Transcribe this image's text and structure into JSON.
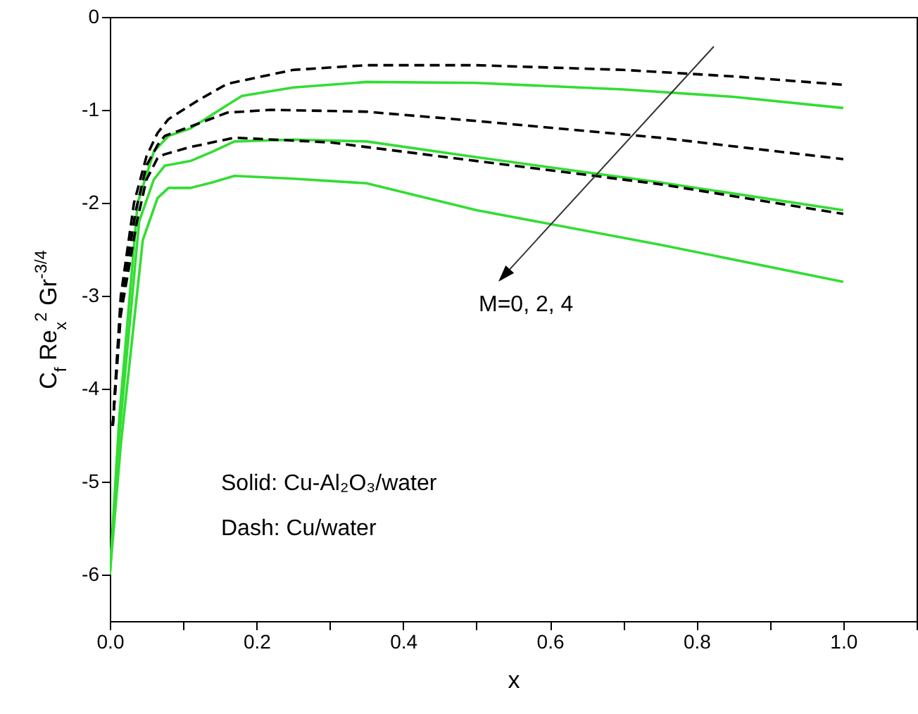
{
  "chart_data": {
    "type": "line",
    "xlabel": "x",
    "ylabel": "C$_{f}$ Re$_{x}$$^{2}$ Gr$^{-3/4}$",
    "xlim": [
      0,
      1.1
    ],
    "ylim": [
      -6.5,
      0
    ],
    "xticks": [
      {
        "value": 0,
        "label": "0.0"
      },
      {
        "value": 0.1,
        "label": null
      },
      0.2,
      {
        "value": 0.3,
        "label": null
      },
      0.4,
      {
        "value": 0.5,
        "label": null
      },
      0.6,
      {
        "value": 0.7,
        "label": null
      },
      0.8,
      {
        "value": 0.9,
        "label": null
      },
      {
        "value": 1,
        "label": "1.0"
      },
      {
        "value": 1.1,
        "label": null
      }
    ],
    "yticks": [
      0,
      -1,
      -2,
      -3,
      -4,
      -5,
      -6
    ],
    "series": [
      {
        "color": "#33dd33",
        "line_style": "solid",
        "x": [
          0,
          0.013,
          0.038,
          0.06,
          0.08,
          0.11,
          0.14,
          0.18,
          0.25,
          0.35,
          0.5,
          0.7,
          0.85,
          1.0
        ],
        "values": [
          -6,
          -4.3,
          -2.0,
          -1.45,
          -1.28,
          -1.2,
          -1.05,
          -0.85,
          -0.76,
          -0.7,
          -0.71,
          -0.78,
          -0.86,
          -0.98
        ]
      },
      {
        "color": "#33dd33",
        "line_style": "solid",
        "x": [
          0,
          0.013,
          0.04,
          0.06,
          0.075,
          0.11,
          0.14,
          0.17,
          0.25,
          0.35,
          0.5,
          0.75,
          1.0
        ],
        "values": [
          -6,
          -4.5,
          -2.2,
          -1.75,
          -1.6,
          -1.55,
          -1.45,
          -1.34,
          -1.32,
          -1.34,
          -1.51,
          -1.78,
          -2.08
        ]
      },
      {
        "color": "#33dd33",
        "line_style": "solid",
        "x": [
          0,
          0.015,
          0.045,
          0.065,
          0.08,
          0.11,
          0.14,
          0.17,
          0.25,
          0.35,
          0.5,
          0.75,
          1.0
        ],
        "values": [
          -6,
          -4.6,
          -2.4,
          -1.95,
          -1.84,
          -1.84,
          -1.78,
          -1.71,
          -1.74,
          -1.79,
          -2.08,
          -2.45,
          -2.85
        ]
      },
      {
        "color": "#000000",
        "line_style": "dashed",
        "x": [
          0.004,
          0.015,
          0.033,
          0.05,
          0.065,
          0.08,
          0.12,
          0.16,
          0.25,
          0.35,
          0.5,
          0.7,
          0.85,
          1.0
        ],
        "values": [
          -4.4,
          -3.0,
          -2.0,
          -1.5,
          -1.25,
          -1.1,
          -0.9,
          -0.72,
          -0.57,
          -0.52,
          -0.52,
          -0.57,
          -0.64,
          -0.73
        ]
      },
      {
        "color": "#000000",
        "line_style": "dashed",
        "x": [
          0.004,
          0.015,
          0.035,
          0.05,
          0.065,
          0.075,
          0.11,
          0.16,
          0.22,
          0.35,
          0.5,
          0.75,
          1.0
        ],
        "values": [
          -4.4,
          -3.1,
          -2.1,
          -1.6,
          -1.38,
          -1.28,
          -1.18,
          -1.03,
          -1.0,
          -1.02,
          -1.12,
          -1.3,
          -1.53
        ]
      },
      {
        "color": "#000000",
        "line_style": "dashed",
        "x": [
          0.004,
          0.015,
          0.037,
          0.05,
          0.065,
          0.074,
          0.11,
          0.17,
          0.3,
          0.5,
          0.75,
          1.0
        ],
        "values": [
          -4.4,
          -3.2,
          -2.2,
          -1.75,
          -1.52,
          -1.48,
          -1.4,
          -1.3,
          -1.35,
          -1.55,
          -1.8,
          -2.12
        ]
      }
    ],
    "annotations": [
      "M=0, 2, 4",
      "Solid: Cu-Al₂O₃/water",
      "Dash: Cu/water"
    ]
  }
}
